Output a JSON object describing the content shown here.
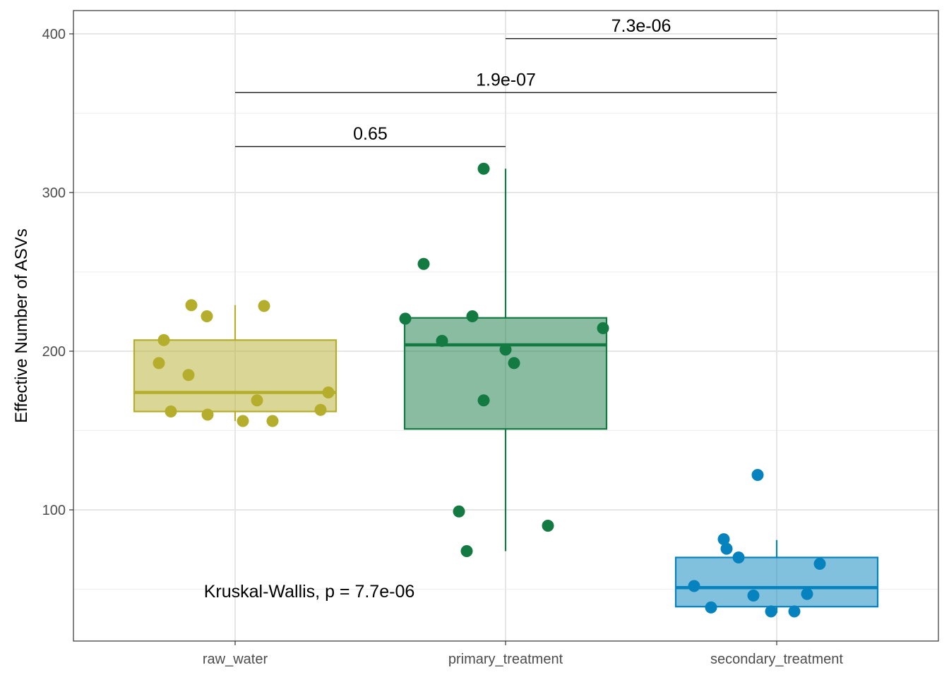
{
  "chart_data": {
    "type": "boxplot",
    "xlabel": "",
    "ylabel": "Effective Number of ASVs",
    "categories": [
      "raw_water",
      "primary_treatment",
      "secondary_treatment"
    ],
    "yticks": [
      100,
      200,
      300,
      400
    ],
    "ylim": [
      17,
      417
    ],
    "grid": true,
    "colors": {
      "raw_water": "#b5ae2c",
      "primary_treatment": "#137a42",
      "secondary_treatment": "#0683be"
    },
    "boxes": [
      {
        "category": "raw_water",
        "q1": 162,
        "median": 174,
        "q3": 207,
        "whisker_low": 156,
        "whisker_high": 229
      },
      {
        "category": "primary_treatment",
        "q1": 151,
        "median": 204,
        "q3": 221,
        "whisker_low": 74,
        "whisker_high": 315
      },
      {
        "category": "secondary_treatment",
        "q1": 39,
        "median": 51,
        "q3": 70,
        "whisker_low": 35,
        "whisker_high": 81
      }
    ],
    "points": [
      {
        "category": "raw_water",
        "values": [
          229,
          222,
          228.5,
          207,
          192.5,
          185,
          174,
          169,
          163,
          162,
          160,
          156,
          156
        ]
      },
      {
        "category": "primary_treatment",
        "values": [
          315,
          255,
          220.5,
          222,
          206.5,
          201,
          192.5,
          169,
          214.5,
          99,
          90,
          74
        ]
      },
      {
        "category": "secondary_treatment",
        "values": [
          122,
          81.5,
          75.5,
          70,
          66,
          52,
          47,
          46,
          38.5,
          36,
          36
        ]
      }
    ],
    "comparisons": [
      {
        "from": "raw_water",
        "to": "primary_treatment",
        "y": 329,
        "label": "0.65"
      },
      {
        "from": "raw_water",
        "to": "secondary_treatment",
        "y": 363,
        "label": "1.9e-07"
      },
      {
        "from": "primary_treatment",
        "to": "secondary_treatment",
        "y": 397,
        "label": "7.3e-06"
      }
    ],
    "annotation": "Kruskal-Wallis, p = 7.7e-06"
  }
}
